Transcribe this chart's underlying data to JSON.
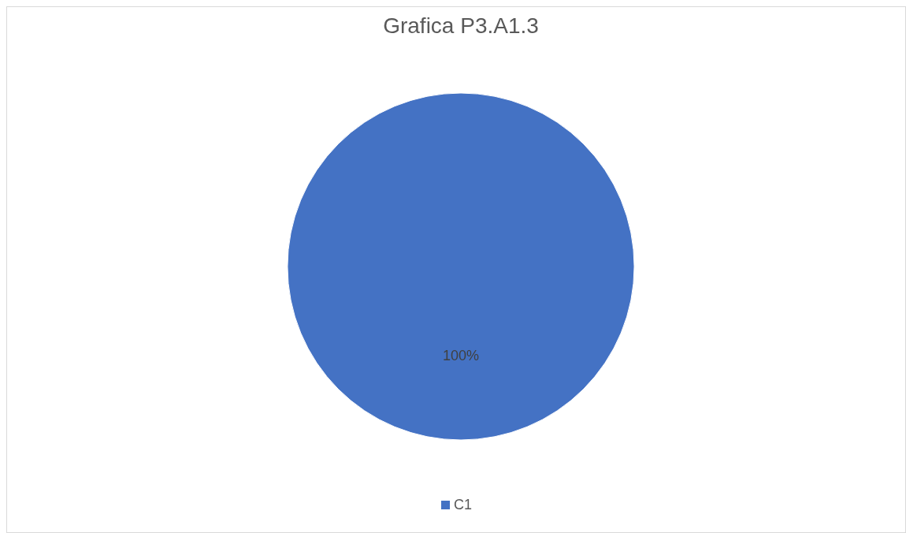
{
  "chart_data": {
    "type": "pie",
    "title": "Grafica P3.A1.3",
    "categories": [
      "C1"
    ],
    "values": [
      100
    ],
    "colors": [
      "#4472c4"
    ],
    "value_labels": [
      "100%"
    ],
    "legend": "bottom"
  }
}
